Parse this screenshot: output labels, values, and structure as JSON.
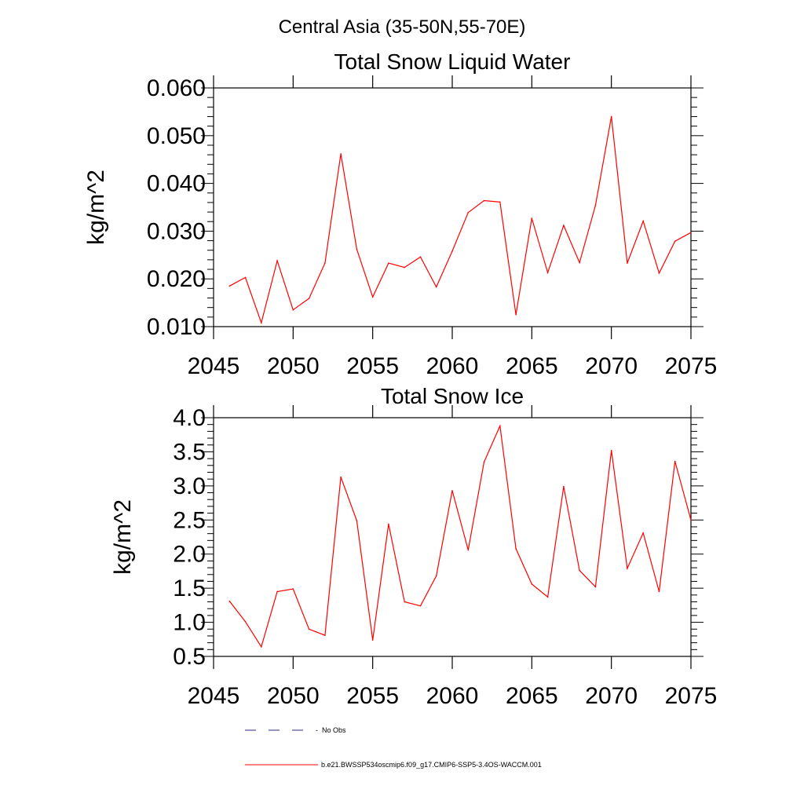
{
  "figure": {
    "title": "Central Asia (35-50N,55-70E)"
  },
  "colors": {
    "series": "#ff0000",
    "obs": "#2b2b8a",
    "axis": "#000000"
  },
  "legend": {
    "obs_label": "No Obs",
    "model_label": "b.e21.BWSSP534oscmip6.f09_g17.CMIP6-SSP5-3.4OS-WACCM.001"
  },
  "chart_data": [
    {
      "type": "line",
      "title": "Total Snow Liquid Water",
      "xlabel": "",
      "ylabel": "kg/m^2",
      "xlim": [
        2045,
        2075
      ],
      "ylim": [
        0.01,
        0.06
      ],
      "xticks": [
        2045,
        2050,
        2055,
        2060,
        2065,
        2070,
        2075
      ],
      "xtick_labels": [
        "2045",
        "2050",
        "2055",
        "2060",
        "2065",
        "2070",
        "2075"
      ],
      "yticks": [
        0.01,
        0.02,
        0.03,
        0.04,
        0.05,
        0.06
      ],
      "ytick_labels": [
        "0.010",
        "0.020",
        "0.030",
        "0.040",
        "0.050",
        "0.060"
      ],
      "series": [
        {
          "name": "b.e21.BWSSP534oscmip6.f09_g17.CMIP6-SSP5-3.4OS-WACCM.001",
          "x": [
            2046,
            2047,
            2048,
            2049,
            2050,
            2051,
            2052,
            2053,
            2054,
            2055,
            2056,
            2057,
            2058,
            2059,
            2060,
            2061,
            2062,
            2063,
            2064,
            2065,
            2066,
            2067,
            2068,
            2069,
            2070,
            2071,
            2072,
            2073,
            2074,
            2075
          ],
          "values": [
            0.0185,
            0.0203,
            0.0108,
            0.0238,
            0.0135,
            0.0159,
            0.0233,
            0.0462,
            0.0262,
            0.0162,
            0.0233,
            0.0224,
            0.0246,
            0.0183,
            0.0258,
            0.0339,
            0.0364,
            0.0361,
            0.0125,
            0.0327,
            0.0213,
            0.0312,
            0.0234,
            0.0354,
            0.054,
            0.0233,
            0.0321,
            0.0212,
            0.0279,
            0.0297
          ]
        }
      ]
    },
    {
      "type": "line",
      "title": "Total Snow Ice",
      "xlabel": "",
      "ylabel": "kg/m^2",
      "xlim": [
        2045,
        2075
      ],
      "ylim": [
        0.5,
        4.0
      ],
      "xticks": [
        2045,
        2050,
        2055,
        2060,
        2065,
        2070,
        2075
      ],
      "xtick_labels": [
        "2045",
        "2050",
        "2055",
        "2060",
        "2065",
        "2070",
        "2075"
      ],
      "yticks": [
        0.5,
        1.0,
        1.5,
        2.0,
        2.5,
        3.0,
        3.5,
        4.0
      ],
      "ytick_labels": [
        "0.5",
        "1.0",
        "1.5",
        "2.0",
        "2.5",
        "3.0",
        "3.5",
        "4.0"
      ],
      "series": [
        {
          "name": "b.e21.BWSSP534oscmip6.f09_g17.CMIP6-SSP5-3.4OS-WACCM.001",
          "x": [
            2046,
            2047,
            2048,
            2049,
            2050,
            2051,
            2052,
            2053,
            2054,
            2055,
            2056,
            2057,
            2058,
            2059,
            2060,
            2061,
            2062,
            2063,
            2064,
            2065,
            2066,
            2067,
            2068,
            2069,
            2070,
            2071,
            2072,
            2073,
            2074,
            2075
          ],
          "values": [
            1.31,
            1.01,
            0.64,
            1.45,
            1.49,
            0.9,
            0.81,
            3.13,
            2.49,
            0.74,
            2.44,
            1.3,
            1.24,
            1.68,
            2.93,
            2.06,
            3.35,
            3.88,
            2.08,
            1.56,
            1.37,
            2.99,
            1.76,
            1.52,
            3.52,
            1.79,
            2.31,
            1.45,
            3.36,
            2.5
          ]
        }
      ]
    }
  ]
}
